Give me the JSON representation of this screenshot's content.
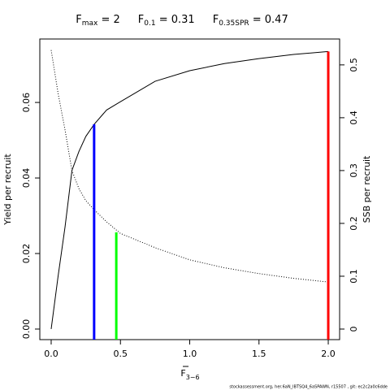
{
  "chart_data": {
    "type": "line",
    "title_parts": [
      [
        "F",
        "max",
        " = 2"
      ],
      [
        "F",
        "0.1",
        " = 0.31"
      ],
      [
        "F",
        "0.35SPR",
        " = 0.47"
      ]
    ],
    "xlabel": {
      "text": "F",
      "sub": "3−6"
    },
    "ylabel": "Yield per recruit",
    "y2label": "SSB per recruit",
    "footer": "stockassessment.org, her.6aN_IBTSQ4_6aSPAWN, r15507 , git: ec2c2a0c6dde",
    "x": [
      0,
      0.05,
      0.1,
      0.15,
      0.2,
      0.25,
      0.31,
      0.4,
      0.5,
      0.75,
      1.0,
      1.25,
      1.5,
      1.75,
      2.0
    ],
    "series": [
      {
        "color": "#000000",
        "style": "solid",
        "values": [
          0,
          0.014,
          0.027,
          0.042,
          0.047,
          0.051,
          0.0542,
          0.058,
          0.0602,
          0.0656,
          0.0684,
          0.0703,
          0.0716,
          0.0727,
          0.0735
        ]
      },
      {
        "color": "#000000",
        "style": "dotted",
        "axis": "y2",
        "values": [
          0.528,
          0.446,
          0.377,
          0.3,
          0.266,
          0.243,
          0.226,
          0.203,
          0.181,
          0.154,
          0.131,
          0.116,
          0.105,
          0.096,
          0.089
        ]
      }
    ],
    "vlines": [
      {
        "x": 0.31,
        "top": 0.0542,
        "color": "#0000ff"
      },
      {
        "x": 0.47,
        "top": 0.183,
        "axis": "y2",
        "color": "#00ff00"
      },
      {
        "x": 2.0,
        "top": 0.0735,
        "color": "#ff0000"
      }
    ],
    "xlim": [
      -0.082,
      2.082
    ],
    "xticks": [
      {
        "value": 0,
        "label": "0.0"
      },
      0.5,
      {
        "value": 1,
        "label": "1.0"
      },
      1.5,
      {
        "value": 2,
        "label": "2.0"
      }
    ],
    "ylim": [
      -0.0028,
      0.0768
    ],
    "yticks": [
      {
        "value": 0,
        "label": "0.00"
      },
      {
        "value": 0.02,
        "label": "0.02"
      },
      {
        "value": 0.04,
        "label": "0.04"
      },
      {
        "value": 0.06,
        "label": "0.06"
      }
    ],
    "y2lim": [
      -0.02,
      0.549
    ],
    "y2ticks": [
      0,
      0.1,
      0.2,
      0.3,
      0.4,
      0.5
    ]
  }
}
